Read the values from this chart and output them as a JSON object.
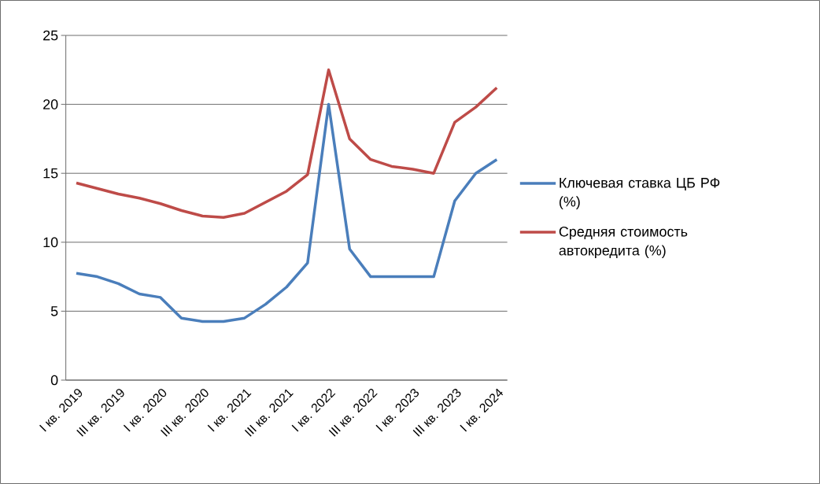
{
  "chart_data": {
    "type": "line",
    "categories": [
      "I кв. 2019",
      null,
      "III кв. 2019",
      null,
      "I кв. 2020",
      null,
      "III кв. 2020",
      null,
      "I кв. 2021",
      null,
      "III кв. 2021",
      null,
      "I кв. 2022",
      null,
      "III кв. 2022",
      null,
      "I кв. 2023",
      null,
      "III кв. 2023",
      null,
      "I кв. 2024"
    ],
    "series": [
      {
        "name": "Ключевая ставка ЦБ РФ (%)",
        "color": "#4a7ebb",
        "values": [
          7.75,
          7.5,
          7.0,
          6.25,
          6.0,
          4.5,
          4.25,
          4.25,
          4.5,
          5.5,
          6.75,
          8.5,
          20,
          9.5,
          7.5,
          7.5,
          7.5,
          7.5,
          13,
          15,
          16
        ]
      },
      {
        "name": "Средняя стоимость автокредита (%)",
        "color": "#be4b48",
        "values": [
          14.3,
          13.9,
          13.5,
          13.2,
          12.8,
          12.3,
          11.9,
          11.8,
          12.1,
          12.9,
          13.7,
          14.9,
          22.5,
          17.5,
          16.0,
          15.5,
          15.3,
          15.0,
          18.7,
          19.8,
          21.2
        ]
      }
    ],
    "ylim": [
      0,
      25
    ],
    "yticks": [
      0,
      5,
      10,
      15,
      20,
      25
    ],
    "grid": "y",
    "legend": "right",
    "marker": "none",
    "line_style": "solid"
  }
}
